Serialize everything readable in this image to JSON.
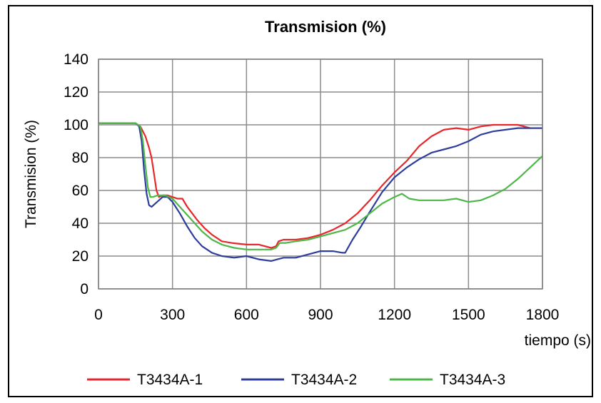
{
  "chart_data": {
    "type": "line",
    "title": "Transmision (%)",
    "xlabel": "tiempo (s)",
    "ylabel": "Transmision (%)",
    "xlim": [
      0,
      1800
    ],
    "ylim": [
      0,
      140
    ],
    "x_ticks": [
      "0",
      "300",
      "600",
      "900",
      "1200",
      "1500",
      "1800"
    ],
    "y_ticks": [
      "0",
      "20",
      "40",
      "60",
      "80",
      "100",
      "120",
      "140"
    ],
    "grid": true,
    "legend_position": "bottom",
    "series": [
      {
        "name": "T3434A-1",
        "color": "#e8262b",
        "points": [
          [
            0,
            101
          ],
          [
            100,
            101
          ],
          [
            150,
            101
          ],
          [
            170,
            99
          ],
          [
            190,
            93
          ],
          [
            205,
            86
          ],
          [
            215,
            80
          ],
          [
            225,
            70
          ],
          [
            235,
            60
          ],
          [
            245,
            56
          ],
          [
            260,
            57
          ],
          [
            280,
            57
          ],
          [
            300,
            56
          ],
          [
            320,
            55
          ],
          [
            340,
            55
          ],
          [
            360,
            50
          ],
          [
            380,
            46
          ],
          [
            400,
            42
          ],
          [
            430,
            37
          ],
          [
            460,
            33
          ],
          [
            500,
            29
          ],
          [
            540,
            28
          ],
          [
            600,
            27
          ],
          [
            650,
            27
          ],
          [
            700,
            25
          ],
          [
            720,
            26
          ],
          [
            730,
            29
          ],
          [
            750,
            30
          ],
          [
            800,
            30
          ],
          [
            850,
            31
          ],
          [
            900,
            33
          ],
          [
            950,
            36
          ],
          [
            1000,
            40
          ],
          [
            1050,
            46
          ],
          [
            1100,
            54
          ],
          [
            1150,
            63
          ],
          [
            1200,
            71
          ],
          [
            1250,
            78
          ],
          [
            1300,
            87
          ],
          [
            1350,
            93
          ],
          [
            1400,
            97
          ],
          [
            1450,
            98
          ],
          [
            1500,
            97
          ],
          [
            1550,
            99
          ],
          [
            1600,
            100
          ],
          [
            1650,
            100
          ],
          [
            1700,
            100
          ],
          [
            1750,
            98
          ]
        ]
      },
      {
        "name": "T3434A-2",
        "color": "#2e3d9c",
        "points": [
          [
            0,
            101
          ],
          [
            100,
            101
          ],
          [
            150,
            101
          ],
          [
            165,
            99
          ],
          [
            175,
            90
          ],
          [
            185,
            72
          ],
          [
            195,
            58
          ],
          [
            205,
            51
          ],
          [
            215,
            50
          ],
          [
            230,
            52
          ],
          [
            260,
            56
          ],
          [
            280,
            56
          ],
          [
            300,
            53
          ],
          [
            330,
            46
          ],
          [
            360,
            38
          ],
          [
            390,
            31
          ],
          [
            420,
            26
          ],
          [
            460,
            22
          ],
          [
            500,
            20
          ],
          [
            550,
            19
          ],
          [
            600,
            20
          ],
          [
            650,
            18
          ],
          [
            700,
            17
          ],
          [
            750,
            19
          ],
          [
            800,
            19
          ],
          [
            850,
            21
          ],
          [
            900,
            23
          ],
          [
            950,
            23
          ],
          [
            990,
            22
          ],
          [
            1000,
            22
          ],
          [
            1030,
            30
          ],
          [
            1060,
            37
          ],
          [
            1100,
            47
          ],
          [
            1150,
            59
          ],
          [
            1200,
            68
          ],
          [
            1250,
            74
          ],
          [
            1300,
            79
          ],
          [
            1350,
            83
          ],
          [
            1400,
            85
          ],
          [
            1450,
            87
          ],
          [
            1500,
            90
          ],
          [
            1550,
            94
          ],
          [
            1600,
            96
          ],
          [
            1650,
            97
          ],
          [
            1700,
            98
          ],
          [
            1750,
            98
          ],
          [
            1800,
            98
          ]
        ]
      },
      {
        "name": "T3434A-3",
        "color": "#4cb848",
        "points": [
          [
            0,
            101
          ],
          [
            100,
            101
          ],
          [
            150,
            101
          ],
          [
            170,
            99
          ],
          [
            180,
            90
          ],
          [
            190,
            75
          ],
          [
            200,
            62
          ],
          [
            210,
            56
          ],
          [
            220,
            56
          ],
          [
            240,
            57
          ],
          [
            270,
            57
          ],
          [
            300,
            55
          ],
          [
            330,
            50
          ],
          [
            360,
            45
          ],
          [
            390,
            40
          ],
          [
            420,
            35
          ],
          [
            460,
            30
          ],
          [
            500,
            27
          ],
          [
            550,
            25
          ],
          [
            600,
            24
          ],
          [
            650,
            24
          ],
          [
            700,
            24
          ],
          [
            720,
            25
          ],
          [
            735,
            28
          ],
          [
            760,
            28
          ],
          [
            800,
            29
          ],
          [
            850,
            30
          ],
          [
            900,
            32
          ],
          [
            950,
            34
          ],
          [
            1000,
            36
          ],
          [
            1050,
            40
          ],
          [
            1100,
            46
          ],
          [
            1150,
            52
          ],
          [
            1200,
            56
          ],
          [
            1230,
            58
          ],
          [
            1260,
            55
          ],
          [
            1300,
            54
          ],
          [
            1350,
            54
          ],
          [
            1400,
            54
          ],
          [
            1450,
            55
          ],
          [
            1500,
            53
          ],
          [
            1550,
            54
          ],
          [
            1600,
            57
          ],
          [
            1650,
            61
          ],
          [
            1700,
            67
          ],
          [
            1750,
            74
          ],
          [
            1800,
            81
          ]
        ]
      }
    ]
  }
}
